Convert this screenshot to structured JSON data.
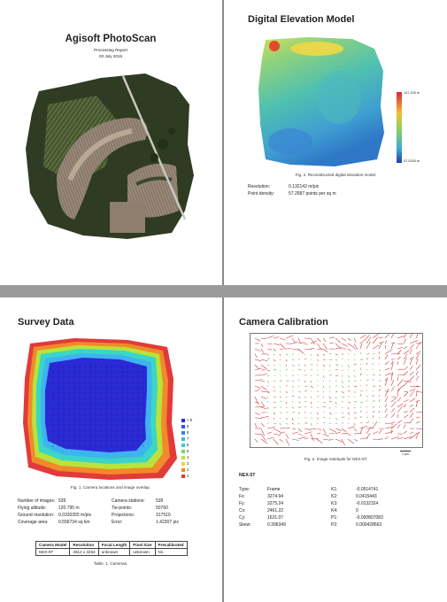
{
  "page1": {
    "title": "Agisoft PhotoScan",
    "subtitle": "Processing Report",
    "date": "03 July 2015"
  },
  "page2": {
    "title": "Digital Elevation Model",
    "colorbar_max": "147.109 m",
    "colorbar_min": "57.0328 m",
    "caption": "Fig. 4. Reconstructed digital elevation model.",
    "stats": [
      {
        "label": "Resolution:",
        "value": "0.132142 m/pix"
      },
      {
        "label": "Point density:",
        "value": "57.2687 points per sq m"
      }
    ]
  },
  "page3": {
    "title": "Survey Data",
    "legend": [
      {
        "label": "> 9",
        "color": "#2a2ad6"
      },
      {
        "label": "9",
        "color": "#3a4df0"
      },
      {
        "label": "8",
        "color": "#3a7cf0"
      },
      {
        "label": "7",
        "color": "#3fb3f0"
      },
      {
        "label": "6",
        "color": "#3ad6c6"
      },
      {
        "label": "5",
        "color": "#6ddc6a"
      },
      {
        "label": "4",
        "color": "#b9e23c"
      },
      {
        "label": "3",
        "color": "#f0d23a"
      },
      {
        "label": "2",
        "color": "#f08a2a"
      },
      {
        "label": "1",
        "color": "#e23a3a"
      }
    ],
    "caption": "Fig. 1. Camera locations and image overlap.",
    "stats_left": [
      {
        "label": "Number of images:",
        "value": "539"
      },
      {
        "label": "Flying altitude:",
        "value": "120.795 m"
      },
      {
        "label": "Ground resolution:",
        "value": "0.0330355 m/pix"
      },
      {
        "label": "Coverage area:",
        "value": "0.556734 sq km"
      }
    ],
    "stats_right": [
      {
        "label": "Camera stations:",
        "value": "539"
      },
      {
        "label": "Tie-points:",
        "value": "50760"
      },
      {
        "label": "Projections:",
        "value": "317510"
      },
      {
        "label": "Error:",
        "value": "1.42307 pix"
      }
    ],
    "table": {
      "headers": [
        "Camera Model",
        "Resolution",
        "Focal Length",
        "Pixel Size",
        "Precalibrated"
      ],
      "rows": [
        [
          "NEX-5T",
          "4912 x 3264",
          "unknown",
          "unknown",
          "No"
        ]
      ],
      "caption": "Table. 1. Cameras."
    }
  },
  "page4": {
    "title": "Camera Calibration",
    "scale_label": "1 pix",
    "caption": "Fig. 2. Image residuals for NEX-5T.",
    "camera": "NEX-5T",
    "params_left": [
      {
        "label": "Type:",
        "value": "Frame"
      },
      {
        "label": "Fx:",
        "value": "3274.94"
      },
      {
        "label": "Fy:",
        "value": "3275.24"
      },
      {
        "label": "Cx:",
        "value": "2461.22"
      },
      {
        "label": "Cy:",
        "value": "1631.07"
      },
      {
        "label": "Skew:",
        "value": "0.396349"
      }
    ],
    "params_right": [
      {
        "label": "K1:",
        "value": "-0.0514741"
      },
      {
        "label": "K2:",
        "value": "0.0415443"
      },
      {
        "label": "K3:",
        "value": "-0.0132324"
      },
      {
        "label": "K4:",
        "value": "0"
      },
      {
        "label": "P1:",
        "value": "-0.000807083"
      },
      {
        "label": "P2:",
        "value": "0.000428663"
      }
    ]
  }
}
